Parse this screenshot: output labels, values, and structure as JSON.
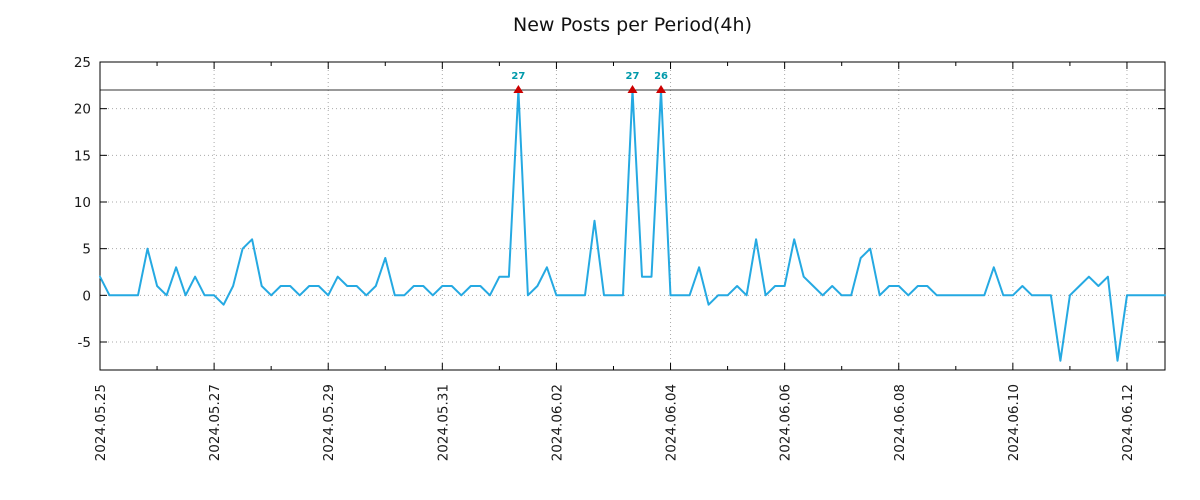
{
  "chart": {
    "title": "New Posts per Period(4h)"
  },
  "chart_data": {
    "type": "line",
    "title": "New Posts per Period(4h)",
    "series_name": "new-posts-per-4h",
    "period_hours": 4,
    "xlabel": "",
    "ylabel": "",
    "ylim": [
      -8,
      25
    ],
    "yticks": [
      -5,
      0,
      5,
      10,
      15,
      20,
      25
    ],
    "grid": "dotted",
    "legend": "none",
    "clip_value": 22,
    "x_tick_labels": [
      "2024.05.25",
      "2024.05.27",
      "2024.05.29",
      "2024.05.31",
      "2024.06.02",
      "2024.06.04",
      "2024.06.06",
      "2024.06.08",
      "2024.06.10",
      "2024.06.12"
    ],
    "x_tick_indices": [
      0,
      12,
      24,
      36,
      48,
      60,
      72,
      84,
      96,
      108
    ],
    "x_minor_tick_step": 6,
    "values": [
      2,
      0,
      0,
      0,
      0,
      5,
      1,
      0,
      3,
      0,
      2,
      0,
      0,
      -1,
      1,
      5,
      6,
      1,
      0,
      1,
      1,
      0,
      1,
      1,
      0,
      2,
      1,
      1,
      0,
      1,
      4,
      0,
      0,
      1,
      1,
      0,
      1,
      1,
      0,
      1,
      1,
      0,
      2,
      2,
      27,
      0,
      1,
      3,
      0,
      0,
      0,
      0,
      8,
      0,
      0,
      0,
      27,
      2,
      2,
      26,
      0,
      0,
      0,
      3,
      -1,
      0,
      0,
      1,
      0,
      6,
      0,
      1,
      1,
      6,
      2,
      1,
      0,
      1,
      0,
      0,
      4,
      5,
      0,
      1,
      1,
      0,
      1,
      1,
      0,
      0,
      0,
      0,
      0,
      0,
      3,
      0,
      0,
      1,
      0,
      0,
      0,
      -7,
      0,
      1,
      2,
      1,
      2,
      -7,
      0,
      0,
      0,
      0,
      0
    ],
    "peaks": [
      {
        "index": 44,
        "value": 27
      },
      {
        "index": 56,
        "value": 27
      },
      {
        "index": 59,
        "value": 26
      }
    ],
    "colors": {
      "line": "#25a9e2",
      "peak_marker": "#cc0000",
      "peak_label": "#0099aa",
      "grid": "#aaaaaa",
      "axis": "#000000",
      "clip_line": "#333333",
      "text": "#1a1a1a"
    }
  }
}
